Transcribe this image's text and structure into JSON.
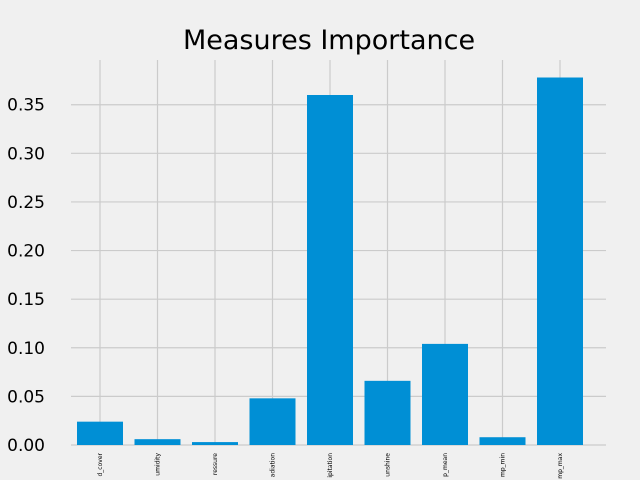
{
  "chart_data": {
    "type": "bar",
    "title": "Measures Importance",
    "xlabel": "",
    "ylabel": "",
    "categories": [
      "cloud_cover",
      "humidity",
      "pressure",
      "global_radiation",
      "precipitation",
      "sunshine",
      "temp_mean",
      "temp_min",
      "temp_max"
    ],
    "visible_tick_text": [
      "d_cover",
      "umidity",
      "ressure",
      "adiation",
      "ipitation",
      "unshine",
      "p_mean",
      "mp_min",
      "mp_max"
    ],
    "values": [
      0.024,
      0.006,
      0.003,
      0.048,
      0.36,
      0.066,
      0.104,
      0.008,
      0.378
    ],
    "yticks": [
      "0.00",
      "0.05",
      "0.10",
      "0.15",
      "0.20",
      "0.25",
      "0.30",
      "0.35"
    ],
    "ylim": [
      0,
      0.396
    ],
    "grid": true,
    "bar_color": "#008fd5",
    "background_color": "#f0f0f0",
    "grid_color": "#cbcbcb"
  }
}
